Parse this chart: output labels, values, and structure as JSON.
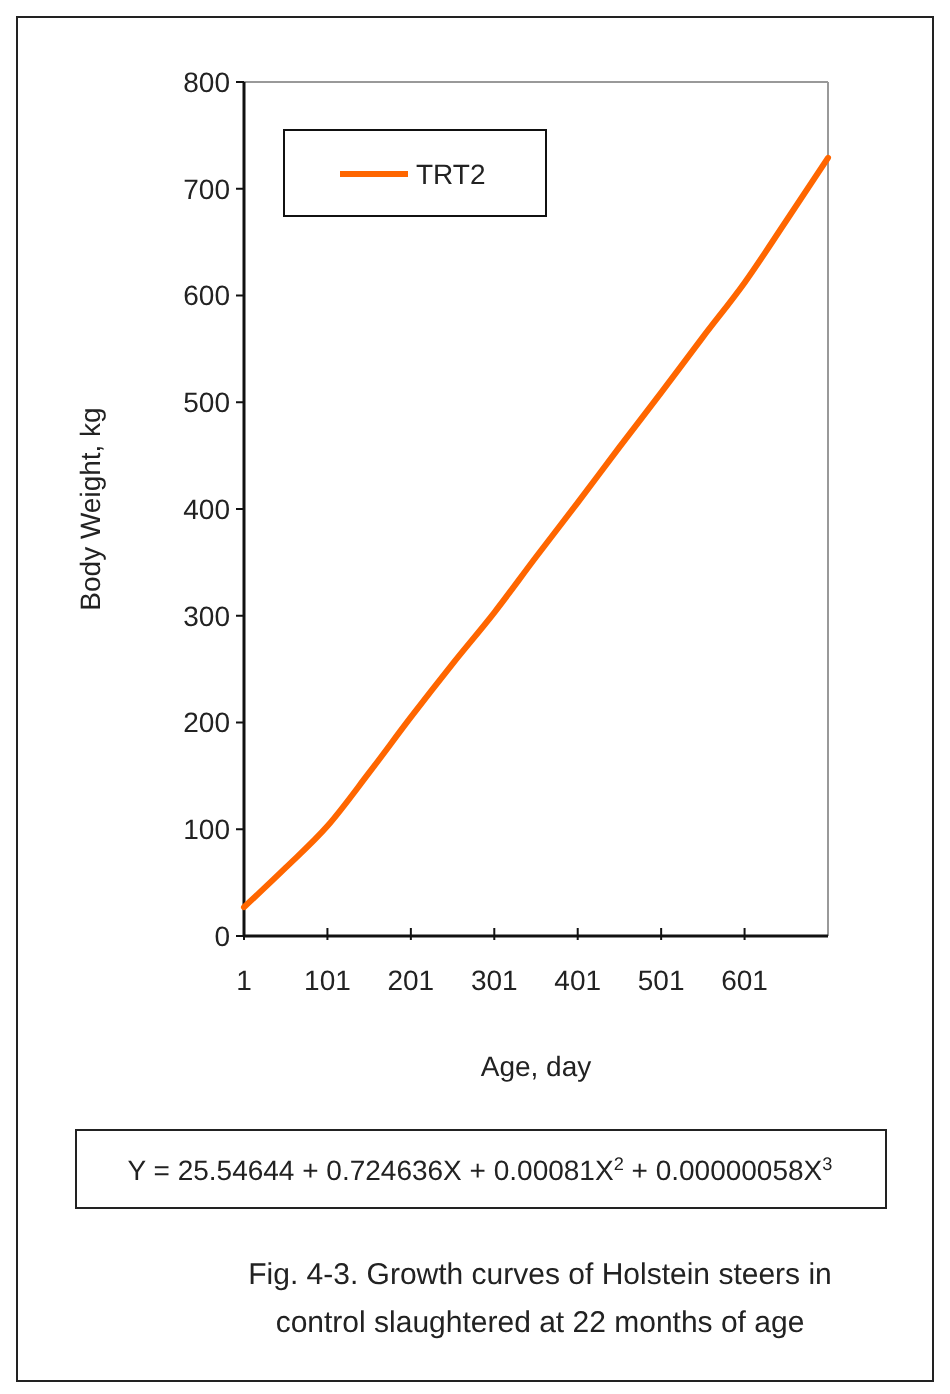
{
  "chart_data": {
    "type": "line",
    "xlabel": "Age, day",
    "ylabel": "Body Weight, kg",
    "x": [
      1,
      51,
      101,
      151,
      201,
      251,
      301,
      351,
      401,
      451,
      501,
      551,
      601,
      651,
      701
    ],
    "series": [
      {
        "name": "TRT2",
        "color": "#ff6600",
        "values": [
          27,
          64,
          103,
          153,
          205,
          255,
          303,
          355,
          406,
          458,
          509,
          561,
          612,
          670,
          729
        ]
      }
    ],
    "xlim": [
      1,
      701
    ],
    "xticks": [
      1,
      101,
      201,
      301,
      401,
      501,
      601
    ],
    "ylim": [
      0,
      800
    ],
    "yticks": [
      0,
      100,
      200,
      300,
      400,
      500,
      600,
      700,
      800
    ],
    "grid": false,
    "legend": "top left",
    "marker": "none",
    "line_style": "solid",
    "annotations": [
      "Y = 25.54644 + 0.724636X + 0.00081X$^{2}$ + 0.00000058X$^{3}$",
      "Fig. 4-3. Growth curves of Holstein steers in control slaughtered at 22 months of age"
    ]
  }
}
